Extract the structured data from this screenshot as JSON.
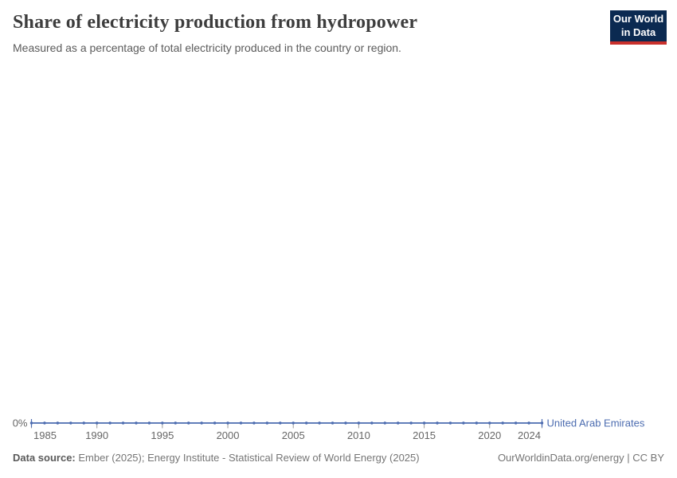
{
  "header": {
    "title": "Share of electricity production from hydropower",
    "subtitle": "Measured as a percentage of total electricity produced in the country or region."
  },
  "logo": {
    "line1": "Our World",
    "line2": "in Data",
    "background_color": "#0b2a51",
    "accent_color": "#c9302c"
  },
  "chart_data": {
    "type": "line",
    "title": "Share of electricity production from hydropower",
    "x": [
      1985,
      1986,
      1987,
      1988,
      1989,
      1990,
      1991,
      1992,
      1993,
      1994,
      1995,
      1996,
      1997,
      1998,
      1999,
      2000,
      2001,
      2002,
      2003,
      2004,
      2005,
      2006,
      2007,
      2008,
      2009,
      2010,
      2011,
      2012,
      2013,
      2014,
      2015,
      2016,
      2017,
      2018,
      2019,
      2020,
      2021,
      2022,
      2023,
      2024
    ],
    "series": [
      {
        "name": "United Arab Emirates",
        "color": "#4c6cb0",
        "values": [
          0,
          0,
          0,
          0,
          0,
          0,
          0,
          0,
          0,
          0,
          0,
          0,
          0,
          0,
          0,
          0,
          0,
          0,
          0,
          0,
          0,
          0,
          0,
          0,
          0,
          0,
          0,
          0,
          0,
          0,
          0,
          0,
          0,
          0,
          0,
          0,
          0,
          0,
          0,
          0
        ]
      }
    ],
    "xlabel": "",
    "ylabel": "",
    "ylim": [
      0,
      0
    ],
    "x_tick_years": [
      1985,
      1990,
      1995,
      2000,
      2005,
      2010,
      2015,
      2020,
      2024
    ],
    "x_tick_labels": [
      "1985",
      "1990",
      "1995",
      "2000",
      "2005",
      "2010",
      "2015",
      "2020",
      "2024"
    ],
    "y_tick_label": "0%",
    "grid": false,
    "legend_position": "line-end",
    "axis_text_color": "#666666",
    "tick_color": "#999999"
  },
  "footer": {
    "source_label": "Data source:",
    "source_text": "Ember (2025); Energy Institute - Statistical Review of World Energy (2025)",
    "credit": "OurWorldinData.org/energy | CC BY"
  }
}
